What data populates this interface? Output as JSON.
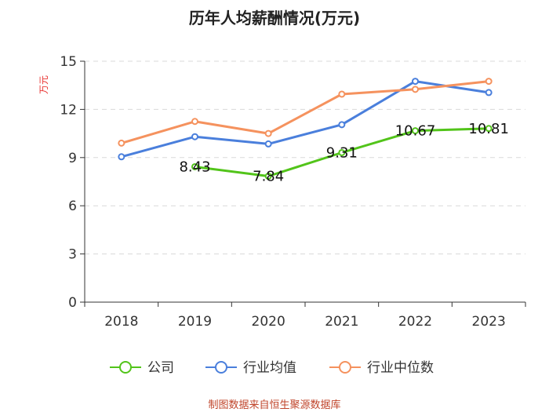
{
  "chart_data": {
    "type": "line",
    "title": "历年人均薪酬情况(万元)",
    "xlabel": "",
    "ylabel": "万元",
    "categories": [
      "2018",
      "2019",
      "2020",
      "2021",
      "2022",
      "2023"
    ],
    "ylim": [
      0,
      15
    ],
    "yticks": [
      0,
      3,
      6,
      9,
      12,
      15
    ],
    "grid": true,
    "legend_position": "bottom",
    "series": [
      {
        "name": "公司",
        "color": "#52c41a",
        "values": [
          null,
          8.43,
          7.84,
          9.31,
          10.67,
          10.81
        ],
        "labels": [
          "",
          "8.43",
          "7.84",
          "9.31",
          "10.67",
          "10.81"
        ]
      },
      {
        "name": "行业均值",
        "color": "#4a7fdc",
        "values": [
          9.05,
          10.3,
          9.85,
          11.05,
          13.75,
          13.05
        ],
        "labels": []
      },
      {
        "name": "行业中位数",
        "color": "#f5925e",
        "values": [
          9.9,
          11.25,
          10.5,
          12.95,
          13.25,
          13.75
        ],
        "labels": []
      }
    ]
  },
  "footer": {
    "source": "制图数据来自恒生聚源数据库"
  }
}
